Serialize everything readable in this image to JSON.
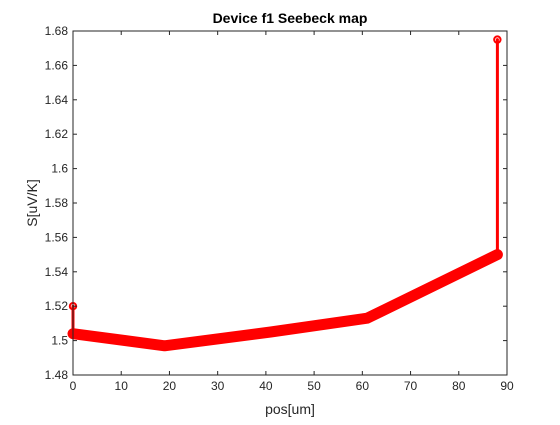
{
  "chart_data": {
    "type": "line",
    "title": "Device f1 Seebeck map",
    "xlabel": "pos[um]",
    "ylabel": "S[uV/K]",
    "xlim": [
      0,
      90
    ],
    "ylim": [
      1.48,
      1.68
    ],
    "xticks": [
      "0",
      "10",
      "20",
      "30",
      "40",
      "50",
      "60",
      "70",
      "80",
      "90"
    ],
    "yticks": [
      "1.48",
      "1.5",
      "1.52",
      "1.54",
      "1.56",
      "1.58",
      "1.6",
      "1.62",
      "1.64",
      "1.66",
      "1.68"
    ],
    "grid": false,
    "series": [
      {
        "color": "#ff0000",
        "line_style": "thick",
        "x": [
          0,
          19,
          41,
          61,
          88
        ],
        "y": [
          1.504,
          1.497,
          1.505,
          1.513,
          1.55
        ]
      },
      {
        "color": "#ff0000",
        "line_style": "thin",
        "marker": "circle",
        "x": [
          0,
          0
        ],
        "y": [
          1.52,
          1.504
        ]
      },
      {
        "color": "#ff0000",
        "line_style": "thin",
        "marker": "circle",
        "x": [
          88,
          88
        ],
        "y": [
          1.675,
          1.55
        ]
      }
    ]
  }
}
